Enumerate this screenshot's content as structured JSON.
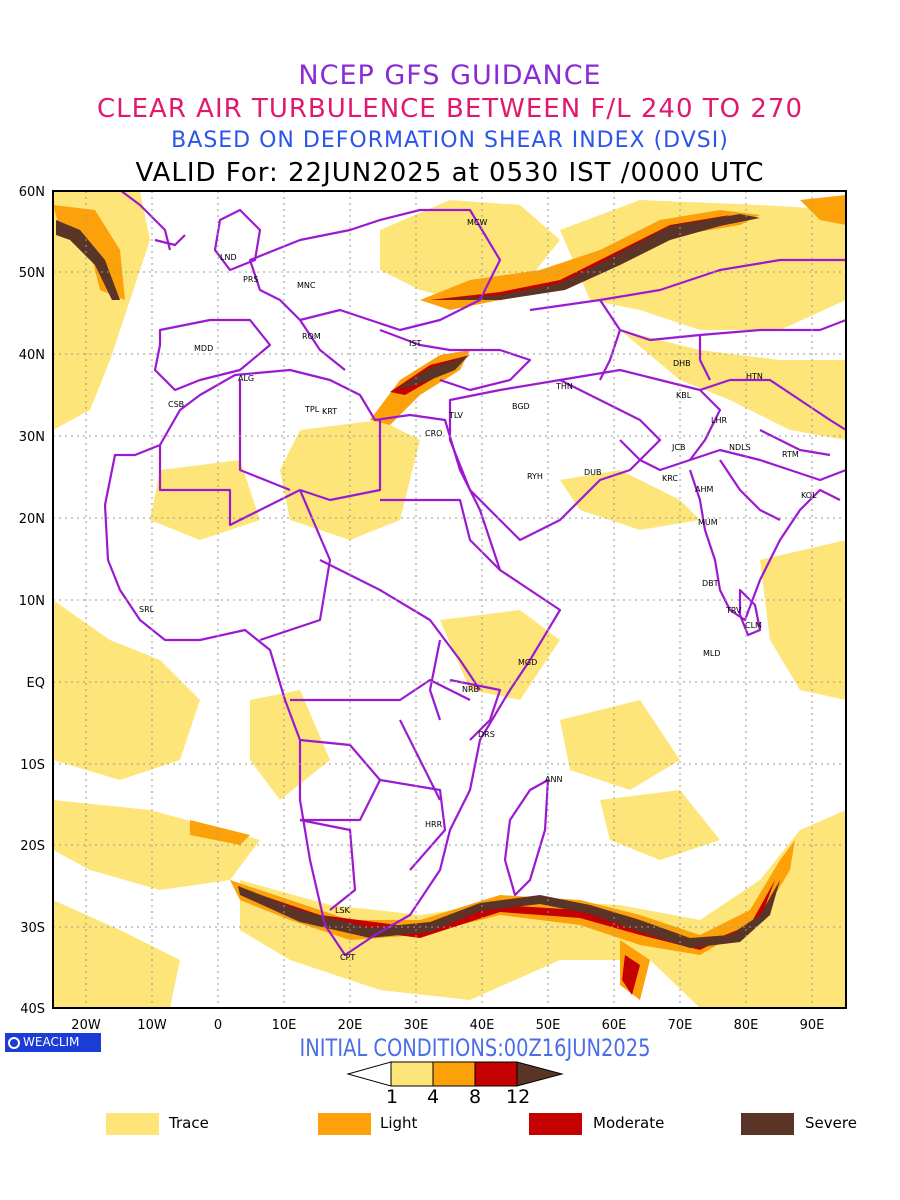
{
  "header": {
    "line1": "NCEP GFS GUIDANCE",
    "line2": "CLEAR AIR TURBULENCE BETWEEN F/L 240 TO 270",
    "line3": "BASED ON DEFORMATION SHEAR INDEX (DVSI)",
    "line4": "VALID For: 22JUN2025 at 0530 IST /0000 UTC"
  },
  "colors": {
    "title1": "#8b2bd6",
    "title2": "#e0196e",
    "title3": "#2a55e8",
    "trace": "#fde57a",
    "light": "#fca10a",
    "moderate": "#c40000",
    "severe": "#5a3426",
    "borders": "#9b1ad1"
  },
  "map": {
    "lat_labels": [
      "60N",
      "50N",
      "40N",
      "30N",
      "20N",
      "10N",
      "EQ",
      "10S",
      "20S",
      "30S",
      "40S"
    ],
    "lon_labels": [
      "20W",
      "10W",
      "0",
      "10E",
      "20E",
      "30E",
      "40E",
      "50E",
      "60E",
      "70E",
      "80E",
      "90E"
    ],
    "cities": [
      "MCW",
      "LND",
      "PRS",
      "MNC",
      "ROM",
      "IST",
      "MDD",
      "ALG",
      "CSB",
      "TPL",
      "KRT",
      "CRO",
      "TLV",
      "BGD",
      "THN",
      "DHB",
      "HTN",
      "KBL",
      "LHR",
      "NDLS",
      "JCB",
      "RTM",
      "KRC",
      "AHM",
      "KOL",
      "RYH",
      "DUB",
      "MUM",
      "DBT",
      "SRL",
      "TRV",
      "CLM",
      "MLD",
      "MGD",
      "NRB",
      "DRS",
      "ANN",
      "HRR",
      "LSK",
      "CPT"
    ]
  },
  "footer": {
    "logo_text": "WEACLIM",
    "initial_conditions": "INITIAL CONDITIONS:00Z16JUN2025"
  },
  "colorbar": {
    "ticks": [
      "1",
      "4",
      "8",
      "12"
    ]
  },
  "legend": [
    {
      "label": "Trace",
      "color": "#fde57a"
    },
    {
      "label": "Light",
      "color": "#fca10a"
    },
    {
      "label": "Moderate",
      "color": "#c40000"
    },
    {
      "label": "Severe",
      "color": "#5a3426"
    }
  ]
}
